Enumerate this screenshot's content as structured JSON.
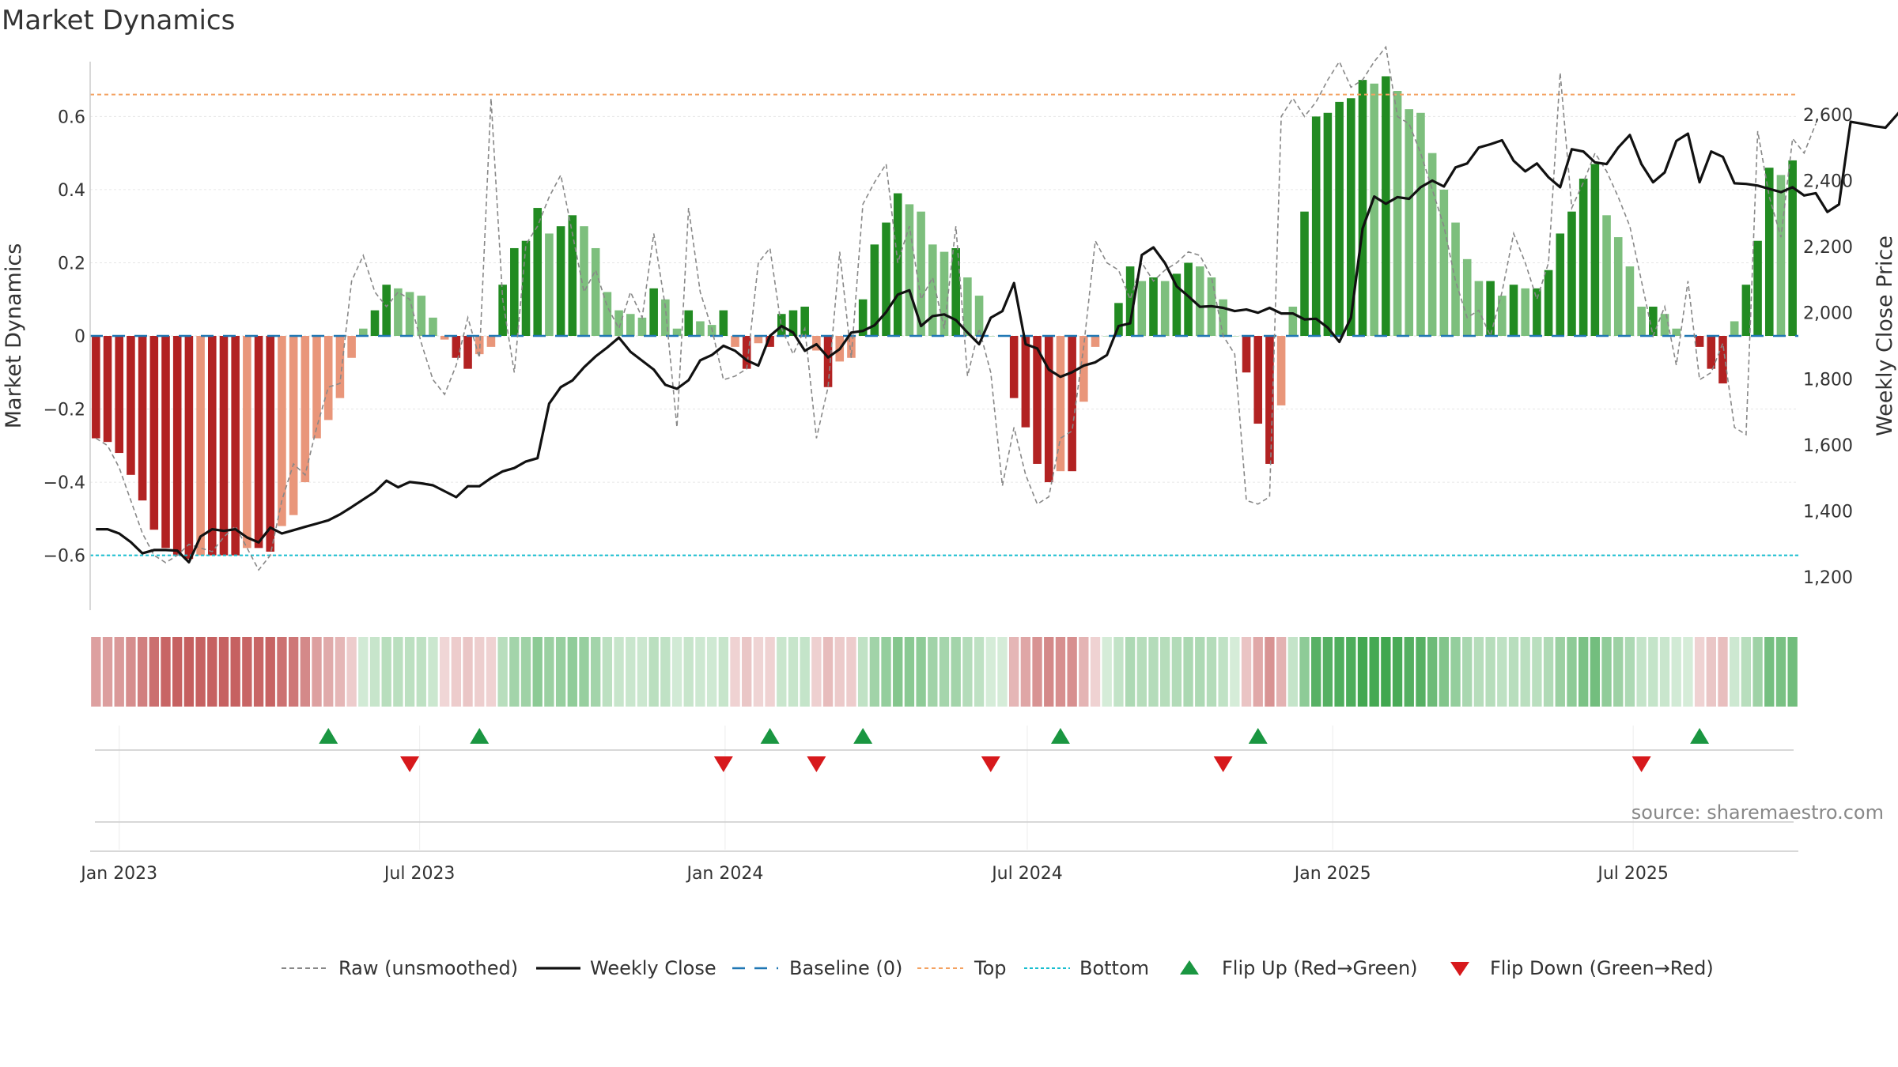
{
  "title": "Market Dynamics",
  "source": "source: sharemaestro.com",
  "chart_data": {
    "type": "bar",
    "title": "Market Dynamics",
    "ylabel": "Market Dynamics",
    "y2label": "Weekly Close Price",
    "ylim": [
      -0.75,
      0.75
    ],
    "y2lim": [
      1100,
      2760
    ],
    "yticks": [
      {
        "v": 0.6,
        "label": "0.6"
      },
      {
        "v": 0.4,
        "label": "0.4"
      },
      {
        "v": 0.2,
        "label": "0.2"
      },
      {
        "v": 0,
        "label": "0"
      },
      {
        "v": -0.2,
        "label": "−0.2"
      },
      {
        "v": -0.4,
        "label": "−0.4"
      },
      {
        "v": -0.6,
        "label": "−0.6"
      }
    ],
    "y2ticks": [
      {
        "v": 2600,
        "label": "2,600"
      },
      {
        "v": 2400,
        "label": "2,400"
      },
      {
        "v": 2200,
        "label": "2,200"
      },
      {
        "v": 2000,
        "label": "2,000"
      },
      {
        "v": 1800,
        "label": "1,800"
      },
      {
        "v": 1600,
        "label": "1,600"
      },
      {
        "v": 1400,
        "label": "1,400"
      },
      {
        "v": 1200,
        "label": "1,200"
      }
    ],
    "x_start": "2022-12-18",
    "x_interval_days": 7,
    "xticks": [
      {
        "date": "2023-01-01",
        "label": "Jan 2023"
      },
      {
        "date": "2023-07-01",
        "label": "Jul 2023"
      },
      {
        "date": "2024-01-01",
        "label": "Jan 2024"
      },
      {
        "date": "2024-07-01",
        "label": "Jul 2024"
      },
      {
        "date": "2025-01-01",
        "label": "Jan 2025"
      },
      {
        "date": "2025-07-01",
        "label": "Jul 2025"
      }
    ],
    "top_line": 0.66,
    "bottom_line": -0.6,
    "baseline": 0,
    "dynamics": [
      -0.28,
      -0.29,
      -0.32,
      -0.38,
      -0.45,
      -0.53,
      -0.58,
      -0.6,
      -0.61,
      -0.6,
      -0.6,
      -0.6,
      -0.6,
      -0.58,
      -0.58,
      -0.59,
      -0.52,
      -0.49,
      -0.4,
      -0.28,
      -0.23,
      -0.17,
      -0.06,
      0.02,
      0.07,
      0.14,
      0.13,
      0.12,
      0.11,
      0.05,
      -0.01,
      -0.06,
      -0.09,
      -0.05,
      -0.03,
      0.14,
      0.24,
      0.26,
      0.35,
      0.28,
      0.3,
      0.33,
      0.3,
      0.24,
      0.12,
      0.07,
      0.06,
      0.05,
      0.13,
      0.1,
      0.02,
      0.07,
      0.04,
      0.03,
      0.07,
      -0.03,
      -0.09,
      -0.02,
      -0.03,
      0.06,
      0.07,
      0.08,
      -0.04,
      -0.14,
      -0.07,
      -0.06,
      0.1,
      0.25,
      0.31,
      0.39,
      0.36,
      0.34,
      0.25,
      0.23,
      0.24,
      0.16,
      0.11,
      0.0,
      0.0,
      -0.17,
      -0.25,
      -0.35,
      -0.4,
      -0.37,
      -0.37,
      -0.18,
      -0.03,
      0.0,
      0.09,
      0.19,
      0.15,
      0.16,
      0.15,
      0.17,
      0.2,
      0.19,
      0.16,
      0.1,
      0.0,
      -0.1,
      -0.24,
      -0.35,
      -0.19,
      0.08,
      0.34,
      0.6,
      0.61,
      0.64,
      0.65,
      0.7,
      0.69,
      0.71,
      0.67,
      0.62,
      0.61,
      0.5,
      0.4,
      0.31,
      0.21,
      0.15,
      0.15,
      0.11,
      0.14,
      0.13,
      0.13,
      0.18,
      0.28,
      0.34,
      0.43,
      0.47,
      0.33,
      0.27,
      0.19,
      0.08,
      0.08,
      0.06,
      0.02,
      0.0,
      -0.03,
      -0.09,
      -0.13,
      0.04,
      0.14,
      0.26,
      0.46,
      0.44,
      0.48
    ],
    "raw": [
      -0.28,
      -0.3,
      -0.36,
      -0.45,
      -0.54,
      -0.6,
      -0.62,
      -0.6,
      -0.57,
      -0.58,
      -0.59,
      -0.55,
      -0.52,
      -0.58,
      -0.64,
      -0.6,
      -0.45,
      -0.35,
      -0.38,
      -0.25,
      -0.14,
      -0.13,
      0.15,
      0.22,
      0.12,
      0.08,
      0.12,
      0.1,
      -0.02,
      -0.12,
      -0.16,
      -0.08,
      0.05,
      -0.06,
      0.65,
      0.1,
      -0.1,
      0.25,
      0.3,
      0.38,
      0.44,
      0.28,
      0.12,
      0.18,
      0.08,
      0.02,
      0.12,
      0.05,
      0.28,
      0.08,
      -0.25,
      0.35,
      0.12,
      0.02,
      -0.12,
      -0.11,
      -0.09,
      0.2,
      0.24,
      0.02,
      -0.05,
      0.02,
      -0.28,
      -0.14,
      0.23,
      -0.06,
      0.36,
      0.42,
      0.47,
      0.2,
      0.3,
      0.1,
      0.16,
      0.02,
      0.3,
      -0.11,
      0.02,
      -0.1,
      -0.41,
      -0.25,
      -0.38,
      -0.46,
      -0.44,
      -0.28,
      -0.26,
      -0.03,
      0.26,
      0.2,
      0.18,
      0.1,
      0.2,
      0.15,
      0.18,
      0.2,
      0.23,
      0.22,
      0.16,
      0.0,
      -0.05,
      -0.45,
      -0.46,
      -0.44,
      0.6,
      0.65,
      0.6,
      0.64,
      0.7,
      0.75,
      0.68,
      0.7,
      0.75,
      0.79,
      0.6,
      0.58,
      0.5,
      0.4,
      0.3,
      0.15,
      0.05,
      0.07,
      0.0,
      0.12,
      0.28,
      0.2,
      0.1,
      0.2,
      0.72,
      0.35,
      0.42,
      0.5,
      0.45,
      0.38,
      0.3,
      0.15,
      0.0,
      0.08,
      -0.08,
      0.15,
      -0.12,
      -0.1,
      -0.02,
      -0.25,
      -0.27,
      0.56,
      0.38,
      0.27,
      0.54,
      0.5,
      0.58
    ],
    "close": [
      1345,
      1345,
      1332,
      1306,
      1272,
      1282,
      1282,
      1280,
      1245,
      1323,
      1345,
      1340,
      1345,
      1320,
      1305,
      1350,
      1332,
      1342,
      1352,
      1362,
      1372,
      1390,
      1412,
      1435,
      1458,
      1492,
      1472,
      1488,
      1484,
      1478,
      1460,
      1442,
      1475,
      1475,
      1500,
      1520,
      1530,
      1550,
      1560,
      1725,
      1775,
      1795,
      1835,
      1868,
      1895,
      1925,
      1882,
      1855,
      1828,
      1782,
      1770,
      1796,
      1856,
      1872,
      1900,
      1885,
      1856,
      1840,
      1930,
      1960,
      1940,
      1885,
      1905,
      1865,
      1890,
      1940,
      1945,
      1962,
      2002,
      2055,
      2068,
      1960,
      1990,
      1995,
      1978,
      1940,
      1905,
      1985,
      2005,
      2090,
      1905,
      1892,
      1828,
      1806,
      1820,
      1840,
      1850,
      1872,
      1960,
      1968,
      2175,
      2198,
      2150,
      2080,
      2050,
      2018,
      2020,
      2015,
      2005,
      2010,
      2000,
      2015,
      1998,
      1998,
      1980,
      1982,
      1955,
      1912,
      1985,
      2255,
      2352,
      2330,
      2350,
      2345,
      2380,
      2400,
      2382,
      2440,
      2452,
      2500,
      2510,
      2522,
      2460,
      2428,
      2452,
      2410,
      2380,
      2495,
      2488,
      2455,
      2450,
      2500,
      2538,
      2450,
      2395,
      2425,
      2520,
      2542,
      2395,
      2488,
      2472,
      2392,
      2390,
      2385,
      2375,
      2365,
      2380,
      2355,
      2362,
      2305,
      2328,
      2578,
      2572,
      2565,
      2560,
      2600,
      2640,
      2690
    ],
    "flip_up": [
      "2023-05-07",
      "2023-08-06",
      "2024-01-28",
      "2024-03-24",
      "2024-07-21",
      "2024-11-17",
      "2025-08-10"
    ],
    "flip_down": [
      "2023-06-25",
      "2023-12-31",
      "2024-02-25",
      "2024-06-09",
      "2024-10-27",
      "2025-07-06"
    ],
    "legend": [
      {
        "key": "raw",
        "label": "Raw (unsmoothed)"
      },
      {
        "key": "close",
        "label": "Weekly Close"
      },
      {
        "key": "baseline",
        "label": "Baseline (0)"
      },
      {
        "key": "top",
        "label": "Top"
      },
      {
        "key": "bottom",
        "label": "Bottom"
      },
      {
        "key": "flip-up",
        "label": "Flip Up (Red→Green)"
      },
      {
        "key": "flip-down",
        "label": "Flip Down (Green→Red)"
      }
    ],
    "colors": {
      "green_strong": "#228b22",
      "green_weak": "#7dbf7d",
      "red_strong": "#b22222",
      "red_weak": "#e9967a",
      "close": "#111111",
      "raw": "#888888",
      "baseline": "#1f77b4",
      "top": "#f4a261",
      "bottom": "#17becf",
      "flip_up": "#1a9641",
      "flip_down": "#d7191c"
    }
  }
}
